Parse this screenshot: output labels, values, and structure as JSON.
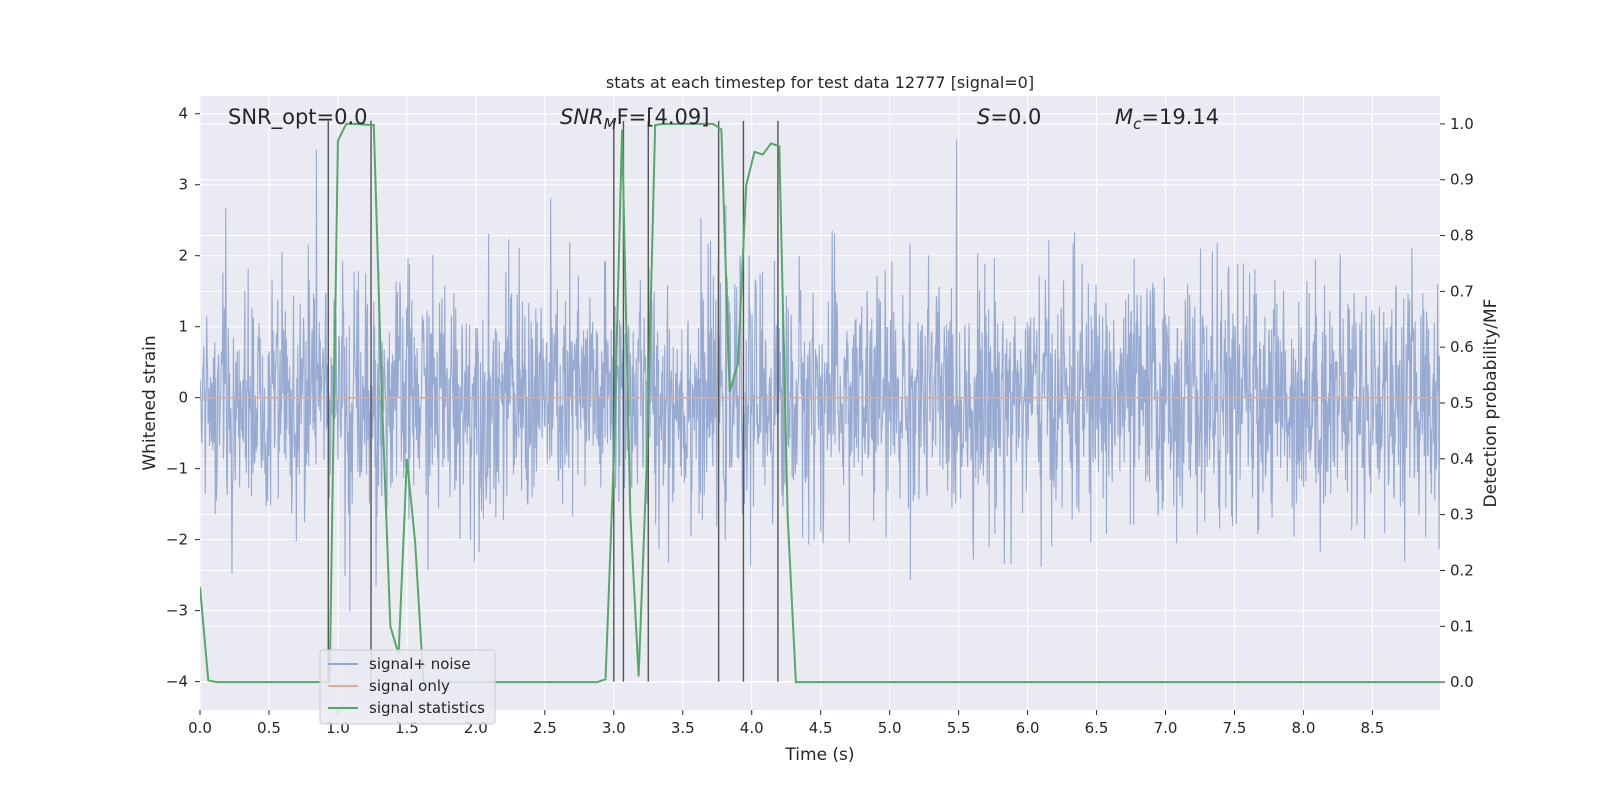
{
  "chart_data": {
    "type": "line",
    "title": "stats at each timestep for test data 12777 [signal=0]",
    "xlabel": "Time (s)",
    "ylabel": "Whitened strain",
    "y2label": "Detection probability/MF",
    "xlim": [
      0.0,
      8.99
    ],
    "ylim": [
      -4.4,
      4.25
    ],
    "y2lim": [
      -0.05,
      1.05
    ],
    "x_ticks": [
      "0.0",
      "0.5",
      "1.0",
      "1.5",
      "2.0",
      "2.5",
      "3.0",
      "3.5",
      "4.0",
      "4.5",
      "5.0",
      "5.5",
      "6.0",
      "6.5",
      "7.0",
      "7.5",
      "8.0",
      "8.5"
    ],
    "y_ticks": [
      "4",
      "3",
      "2",
      "1",
      "0",
      "−1",
      "−2",
      "−3",
      "−4"
    ],
    "y2_ticks": [
      "1.0",
      "0.9",
      "0.8",
      "0.7",
      "0.6",
      "0.5",
      "0.4",
      "0.3",
      "0.2",
      "0.1",
      "0.0"
    ],
    "grid": true,
    "legend_position": "lower-left",
    "annotations": {
      "snr_opt": "SNR_opt=0.0",
      "snr_mf_main": "SNR",
      "snr_mf_sub": "M",
      "snr_mf_rest": "F=[4.09]",
      "s_main": "S",
      "s_rest": "=0.0",
      "mc_main": "M",
      "mc_sub": "c",
      "mc_rest": "=19.14"
    },
    "series": [
      {
        "name": "signal+ noise",
        "color": "#92a6cf",
        "axis": "left",
        "noise_model": "gaussian",
        "noise_std": 0.85,
        "noise_range": [
          -4.0,
          3.9
        ],
        "y_values": []
      },
      {
        "name": "signal only",
        "color": "#e8a88c",
        "axis": "left",
        "constant_value": 0.0
      },
      {
        "name": "signal statistics",
        "color": "#55a868",
        "axis": "right",
        "x": [
          0.0,
          0.06,
          0.12,
          0.18,
          0.24,
          0.3,
          0.36,
          0.42,
          0.48,
          0.54,
          0.6,
          0.66,
          0.72,
          0.78,
          0.84,
          0.9,
          0.94,
          1.0,
          1.06,
          1.12,
          1.18,
          1.24,
          1.26,
          1.32,
          1.38,
          1.44,
          1.5,
          1.56,
          1.62,
          1.68,
          1.74,
          1.8,
          1.86,
          1.92,
          1.98,
          2.04,
          2.1,
          2.16,
          2.22,
          2.28,
          2.34,
          2.4,
          2.46,
          2.52,
          2.58,
          2.64,
          2.7,
          2.76,
          2.82,
          2.88,
          2.94,
          3.0,
          3.06,
          3.12,
          3.18,
          3.24,
          3.3,
          3.36,
          3.42,
          3.48,
          3.54,
          3.6,
          3.66,
          3.72,
          3.78,
          3.84,
          3.9,
          3.96,
          4.02,
          4.08,
          4.14,
          4.2,
          4.26,
          4.32,
          4.38,
          4.44,
          4.5,
          4.56,
          4.62,
          4.68,
          4.74,
          4.8,
          4.86,
          4.92,
          4.98,
          5.04,
          5.1,
          5.16,
          5.22,
          5.28,
          5.34,
          5.4,
          5.46,
          5.52,
          5.58,
          5.64,
          5.7,
          5.76,
          5.82,
          5.88,
          5.94,
          6.0,
          6.06,
          6.12,
          6.18,
          6.24,
          6.3,
          6.36,
          6.42,
          6.48,
          6.54,
          6.6,
          6.66,
          6.72,
          6.78,
          6.84,
          6.9,
          6.96,
          7.02,
          7.08,
          7.14,
          7.2,
          7.26,
          7.32,
          7.38,
          7.44,
          7.5,
          7.56,
          7.62,
          7.68,
          7.74,
          7.8,
          7.86,
          7.92,
          7.98,
          8.04,
          8.1,
          8.16,
          8.22,
          8.28,
          8.34,
          8.4,
          8.46,
          8.52,
          8.58,
          8.64,
          8.7,
          8.76,
          8.82,
          8.88,
          8.94,
          8.99
        ],
        "y": [
          0.17,
          0.003,
          0.0,
          0.0,
          0.0,
          0.0,
          0.0,
          0.0,
          0.0,
          0.0,
          0.0,
          0.0,
          0.0,
          0.0,
          0.0,
          0.0,
          0.0,
          0.97,
          1.0,
          1.0,
          0.999,
          0.998,
          0.998,
          0.5,
          0.1,
          0.05,
          0.4,
          0.25,
          0.0,
          0.0,
          0.0,
          0.0,
          0.0,
          0.0,
          0.0,
          0.0,
          0.0,
          0.0,
          0.0,
          0.0,
          0.0,
          0.0,
          0.0,
          0.0,
          0.0,
          0.0,
          0.0,
          0.0,
          0.0,
          0.0,
          0.005,
          0.4,
          0.99,
          0.3,
          0.01,
          0.4,
          0.998,
          1.0,
          1.0,
          1.0,
          1.0,
          1.0,
          1.0,
          1.0,
          0.99,
          0.52,
          0.57,
          0.89,
          0.95,
          0.945,
          0.965,
          0.96,
          0.3,
          0.0,
          0.0,
          0.0,
          0.0,
          0.0,
          0.0,
          0.0,
          0.0,
          0.0,
          0.0,
          0.0,
          0.0,
          0.0,
          0.0,
          0.0,
          0.0,
          0.0,
          0.0,
          0.0,
          0.0,
          0.0,
          0.0,
          0.0,
          0.0,
          0.0,
          0.0,
          0.0,
          0.0,
          0.0,
          0.0,
          0.0,
          0.0,
          0.0,
          0.0,
          0.0,
          0.0,
          0.0,
          0.0,
          0.0,
          0.0,
          0.0,
          0.0,
          0.0,
          0.0,
          0.0,
          0.0,
          0.0,
          0.0,
          0.0,
          0.0,
          0.0,
          0.0,
          0.0,
          0.0,
          0.0,
          0.0,
          0.0,
          0.0,
          0.0,
          0.0,
          0.0,
          0.0,
          0.0,
          0.0,
          0.0,
          0.0,
          0.0,
          0.0,
          0.0,
          0.0,
          0.0,
          0.0,
          0.0,
          0.0,
          0.0,
          0.0,
          0.0,
          0.0,
          0.0
        ]
      }
    ],
    "vertical_markers": {
      "color": "#555555",
      "x": [
        0.93,
        1.24,
        3.0,
        3.07,
        3.25,
        3.76,
        3.94,
        4.19
      ],
      "y_top": 3.9,
      "y_bottom": -4.0
    }
  },
  "legend": {
    "entries": [
      {
        "label": "signal+ noise",
        "color": "#92a6cf"
      },
      {
        "label": "signal only",
        "color": "#e8a88c"
      },
      {
        "label": "signal statistics",
        "color": "#55a868"
      }
    ]
  },
  "colors": {
    "plot_background": "#eaeaf2",
    "grid": "#ffffff",
    "text": "#262626"
  }
}
